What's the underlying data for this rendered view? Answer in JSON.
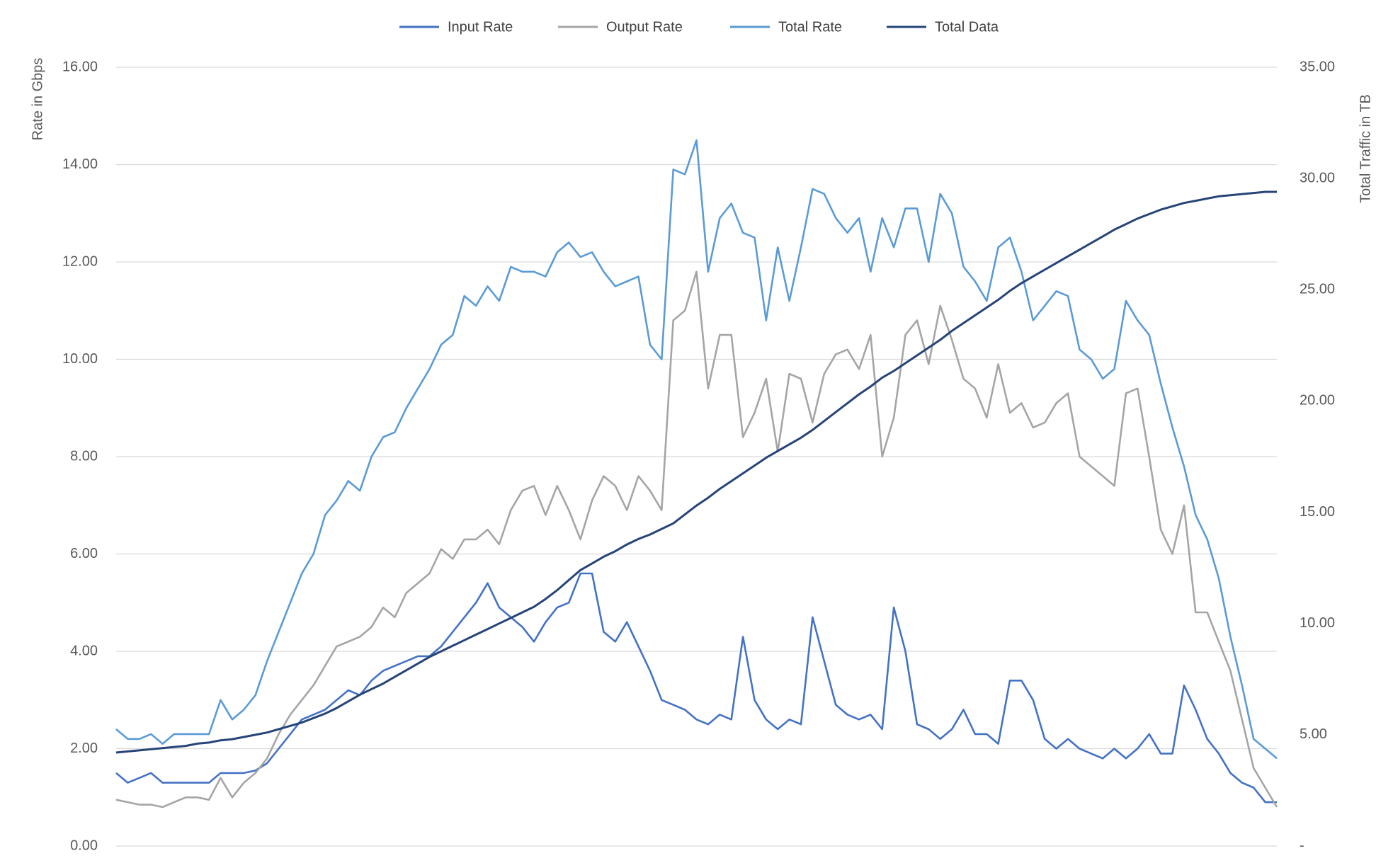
{
  "chart_data": {
    "type": "line",
    "y_label": "Rate in Gbps",
    "y2_label": "Total Traffic in TB",
    "ylim": [
      0,
      16
    ],
    "yticks": [
      {
        "value": 0,
        "label": "0.00"
      },
      {
        "value": 2,
        "label": "2.00"
      },
      {
        "value": 4,
        "label": "4.00"
      },
      {
        "value": 6,
        "label": "6.00"
      },
      {
        "value": 8,
        "label": "8.00"
      },
      {
        "value": 10,
        "label": "10.00"
      },
      {
        "value": 12,
        "label": "12.00"
      },
      {
        "value": 14,
        "label": "14.00"
      },
      {
        "value": 16,
        "label": "16.00"
      }
    ],
    "y2lim": [
      0,
      35
    ],
    "y2ticks": [
      {
        "value": 0,
        "label": "-"
      },
      {
        "value": 5,
        "label": "5.00"
      },
      {
        "value": 10,
        "label": "10.00"
      },
      {
        "value": 15,
        "label": "15.00"
      },
      {
        "value": 20,
        "label": "20.00"
      },
      {
        "value": 25,
        "label": "25.00"
      },
      {
        "value": 30,
        "label": "30.00"
      },
      {
        "value": 35,
        "label": "35.00"
      }
    ],
    "grid": true,
    "legend": "top",
    "series": [
      {
        "name": "Input Rate",
        "color": "#4472c4",
        "values": [
          1.5,
          1.3,
          1.4,
          1.5,
          1.3,
          1.3,
          1.3,
          1.3,
          1.3,
          1.5,
          1.5,
          1.5,
          1.55,
          1.7,
          2.0,
          2.3,
          2.6,
          2.7,
          2.8,
          3.0,
          3.2,
          3.1,
          3.4,
          3.6,
          3.7,
          3.8,
          3.9,
          3.9,
          4.1,
          4.4,
          4.7,
          5.0,
          5.4,
          4.9,
          4.7,
          4.5,
          4.2,
          4.6,
          4.9,
          5.0,
          5.6,
          5.6,
          4.4,
          4.2,
          4.6,
          4.1,
          3.6,
          3.0,
          2.9,
          2.8,
          2.6,
          2.5,
          2.7,
          2.6,
          4.3,
          3.0,
          2.6,
          2.4,
          2.6,
          2.5,
          4.7,
          3.8,
          2.9,
          2.7,
          2.6,
          2.7,
          2.4,
          4.9,
          4.0,
          2.5,
          2.4,
          2.2,
          2.4,
          2.8,
          2.3,
          2.3,
          2.1,
          3.4,
          3.4,
          3.0,
          2.2,
          2.0,
          2.2,
          2.0,
          1.9,
          1.8,
          2.0,
          1.8,
          2.0,
          2.3,
          1.9,
          1.9,
          3.3,
          2.8,
          2.2,
          1.9,
          1.5,
          1.3,
          1.2,
          0.9,
          0.9
        ]
      },
      {
        "name": "Output Rate",
        "color": "#a5a5a5",
        "values": [
          0.95,
          0.9,
          0.85,
          0.85,
          0.8,
          0.9,
          1.0,
          1.0,
          0.95,
          1.4,
          1.0,
          1.3,
          1.5,
          1.8,
          2.3,
          2.7,
          3.0,
          3.3,
          3.7,
          4.1,
          4.2,
          4.3,
          4.5,
          4.9,
          4.7,
          5.2,
          5.4,
          5.6,
          6.1,
          5.9,
          6.3,
          6.3,
          6.5,
          6.2,
          6.9,
          7.3,
          7.4,
          6.8,
          7.4,
          6.9,
          6.3,
          7.1,
          7.6,
          7.4,
          6.9,
          7.6,
          7.3,
          6.9,
          10.8,
          11.0,
          11.8,
          9.4,
          10.5,
          10.5,
          8.4,
          8.9,
          9.6,
          8.1,
          9.7,
          9.6,
          8.7,
          9.7,
          10.1,
          10.2,
          9.8,
          10.5,
          8.0,
          8.8,
          10.5,
          10.8,
          9.9,
          11.1,
          10.4,
          9.6,
          9.4,
          8.8,
          9.9,
          8.9,
          9.1,
          8.6,
          8.7,
          9.1,
          9.3,
          8.0,
          7.8,
          7.6,
          7.4,
          9.3,
          9.4,
          8.0,
          6.5,
          6.0,
          7.0,
          4.8,
          4.8,
          4.2,
          3.6,
          2.6,
          1.6,
          1.2,
          0.8
        ]
      },
      {
        "name": "Total Rate",
        "color": "#5b9bd5",
        "values": [
          2.4,
          2.2,
          2.2,
          2.3,
          2.1,
          2.3,
          2.3,
          2.3,
          2.3,
          3.0,
          2.6,
          2.8,
          3.1,
          3.8,
          4.4,
          5.0,
          5.6,
          6.0,
          6.8,
          7.1,
          7.5,
          7.3,
          8.0,
          8.4,
          8.5,
          9.0,
          9.4,
          9.8,
          10.3,
          10.5,
          11.3,
          11.1,
          11.5,
          11.2,
          11.9,
          11.8,
          11.8,
          11.7,
          12.2,
          12.4,
          12.1,
          12.2,
          11.8,
          11.5,
          11.6,
          11.7,
          10.3,
          10.0,
          13.9,
          13.8,
          14.5,
          11.8,
          12.9,
          13.2,
          12.6,
          12.5,
          10.8,
          12.3,
          11.2,
          12.3,
          13.5,
          13.4,
          12.9,
          12.6,
          12.9,
          11.8,
          12.9,
          12.3,
          13.1,
          13.1,
          12.0,
          13.4,
          13.0,
          11.9,
          11.6,
          11.2,
          12.3,
          12.5,
          11.8,
          10.8,
          11.1,
          11.4,
          11.3,
          10.2,
          10.0,
          9.6,
          9.8,
          11.2,
          10.8,
          10.5,
          9.5,
          8.6,
          7.8,
          6.8,
          6.3,
          5.5,
          4.3,
          3.3,
          2.2,
          2.0,
          1.8
        ]
      },
      {
        "name": "Total Data",
        "color": "#264478",
        "axis": "y2",
        "values": [
          4.2,
          4.25,
          4.3,
          4.35,
          4.4,
          4.45,
          4.5,
          4.6,
          4.65,
          4.75,
          4.8,
          4.9,
          5.0,
          5.1,
          5.25,
          5.4,
          5.55,
          5.75,
          5.95,
          6.2,
          6.5,
          6.8,
          7.05,
          7.3,
          7.6,
          7.9,
          8.2,
          8.5,
          8.75,
          9.0,
          9.25,
          9.5,
          9.75,
          10.0,
          10.25,
          10.5,
          10.75,
          11.1,
          11.5,
          11.95,
          12.4,
          12.7,
          13.0,
          13.25,
          13.55,
          13.8,
          14.0,
          14.25,
          14.5,
          14.9,
          15.3,
          15.65,
          16.05,
          16.4,
          16.75,
          17.1,
          17.45,
          17.75,
          18.05,
          18.35,
          18.7,
          19.1,
          19.5,
          19.9,
          20.3,
          20.65,
          21.05,
          21.35,
          21.7,
          22.05,
          22.4,
          22.75,
          23.15,
          23.5,
          23.85,
          24.2,
          24.55,
          24.95,
          25.3,
          25.6,
          25.9,
          26.2,
          26.5,
          26.8,
          27.1,
          27.4,
          27.7,
          27.95,
          28.2,
          28.4,
          28.6,
          28.75,
          28.9,
          29.0,
          29.1,
          29.2,
          29.25,
          29.3,
          29.35,
          29.4,
          29.4
        ]
      }
    ]
  }
}
